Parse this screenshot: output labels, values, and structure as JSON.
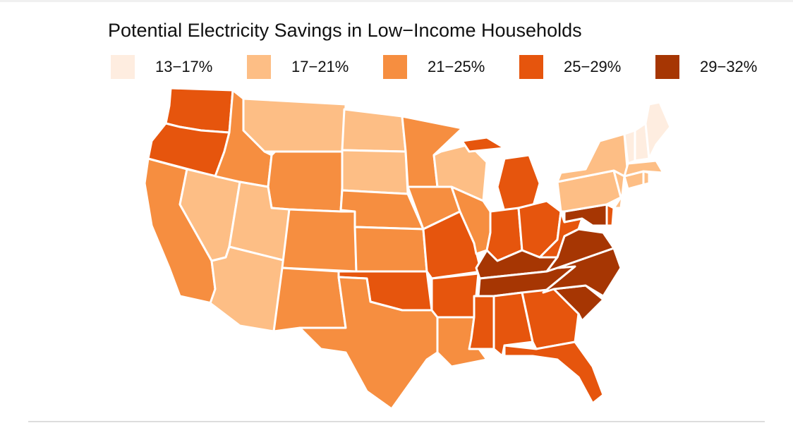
{
  "title": "Potential Electricity Savings in Low−Income Households",
  "legend": [
    {
      "label": "13−17%",
      "color": "#feede0"
    },
    {
      "label": "17−21%",
      "color": "#fdbe85"
    },
    {
      "label": "21−25%",
      "color": "#f68e40"
    },
    {
      "label": "25−29%",
      "color": "#e6550d"
    },
    {
      "label": "29−32%",
      "color": "#a63603"
    }
  ],
  "border_color": "#ffffff",
  "states": [
    {
      "state": "WA",
      "bin": "25−29%"
    },
    {
      "state": "OR",
      "bin": "25−29%"
    },
    {
      "state": "CA",
      "bin": "21−25%"
    },
    {
      "state": "NV",
      "bin": "17−21%"
    },
    {
      "state": "ID",
      "bin": "21−25%"
    },
    {
      "state": "MT",
      "bin": "17−21%"
    },
    {
      "state": "WY",
      "bin": "21−25%"
    },
    {
      "state": "UT",
      "bin": "17−21%"
    },
    {
      "state": "AZ",
      "bin": "17−21%"
    },
    {
      "state": "CO",
      "bin": "21−25%"
    },
    {
      "state": "NM",
      "bin": "21−25%"
    },
    {
      "state": "ND",
      "bin": "17−21%"
    },
    {
      "state": "SD",
      "bin": "17−21%"
    },
    {
      "state": "NE",
      "bin": "21−25%"
    },
    {
      "state": "KS",
      "bin": "21−25%"
    },
    {
      "state": "OK",
      "bin": "25−29%"
    },
    {
      "state": "TX",
      "bin": "21−25%"
    },
    {
      "state": "MN",
      "bin": "21−25%"
    },
    {
      "state": "IA",
      "bin": "21−25%"
    },
    {
      "state": "MO",
      "bin": "25−29%"
    },
    {
      "state": "AR",
      "bin": "25−29%"
    },
    {
      "state": "LA",
      "bin": "21−25%"
    },
    {
      "state": "WI",
      "bin": "17−21%"
    },
    {
      "state": "IL",
      "bin": "21−25%"
    },
    {
      "state": "MI",
      "bin": "25−29%"
    },
    {
      "state": "IN",
      "bin": "25−29%"
    },
    {
      "state": "OH",
      "bin": "25−29%"
    },
    {
      "state": "KY",
      "bin": "29−32%"
    },
    {
      "state": "TN",
      "bin": "29−32%"
    },
    {
      "state": "MS",
      "bin": "25−29%"
    },
    {
      "state": "AL",
      "bin": "25−29%"
    },
    {
      "state": "GA",
      "bin": "25−29%"
    },
    {
      "state": "FL",
      "bin": "25−29%"
    },
    {
      "state": "SC",
      "bin": "29−32%"
    },
    {
      "state": "NC",
      "bin": "29−32%"
    },
    {
      "state": "VA",
      "bin": "29−32%"
    },
    {
      "state": "WV",
      "bin": "25−29%"
    },
    {
      "state": "MD",
      "bin": "29−32%"
    },
    {
      "state": "DE",
      "bin": "25−29%"
    },
    {
      "state": "PA",
      "bin": "17−21%"
    },
    {
      "state": "NY",
      "bin": "17−21%"
    },
    {
      "state": "NJ",
      "bin": "17−21%"
    },
    {
      "state": "CT",
      "bin": "17−21%"
    },
    {
      "state": "RI",
      "bin": "17−21%"
    },
    {
      "state": "MA",
      "bin": "17−21%"
    },
    {
      "state": "VT",
      "bin": "13−17%"
    },
    {
      "state": "NH",
      "bin": "13−17%"
    },
    {
      "state": "ME",
      "bin": "13−17%"
    }
  ]
}
